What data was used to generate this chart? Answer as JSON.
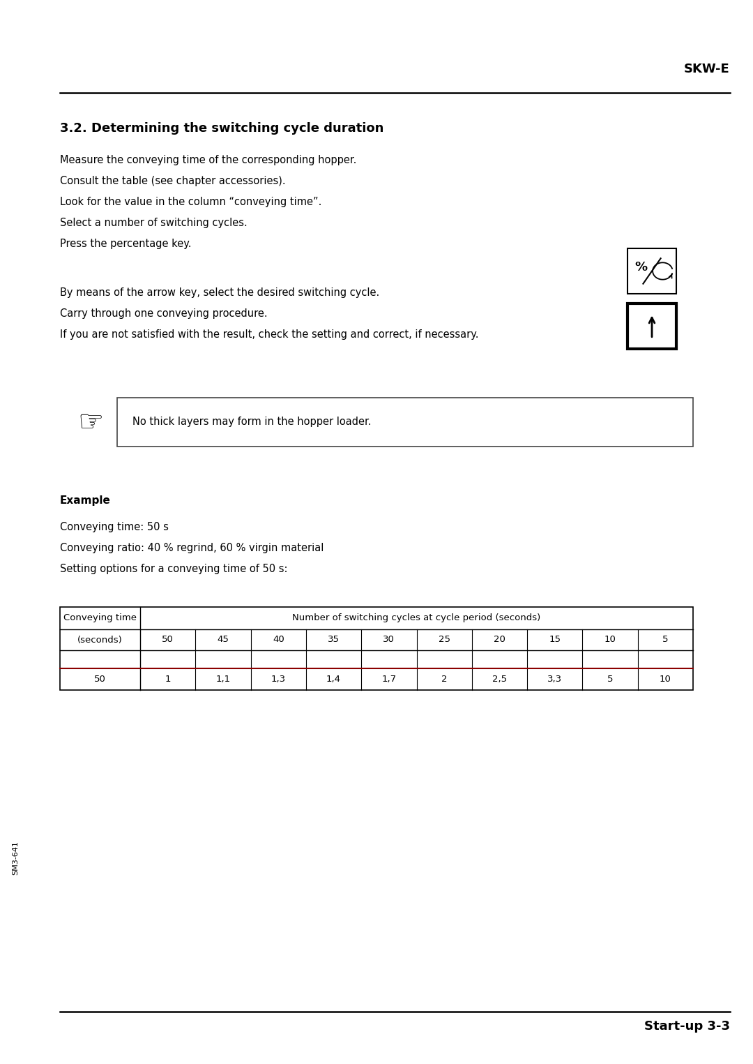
{
  "page_bg": "#ffffff",
  "header_text": "SKW-E",
  "footer_text": "Start-up 3-3",
  "side_text": "SM3-641",
  "section_title": "3.2. Determining the switching cycle duration",
  "body_lines_before_gap": [
    "Measure the conveying time of the corresponding hopper.",
    "Consult the table (see chapter accessories).",
    "Look for the value in the column “conveying time”.",
    "Select a number of switching cycles.",
    "Press the percentage key."
  ],
  "body_lines_after_gap": [
    "By means of the arrow key, select the desired switching cycle.",
    "Carry through one conveying procedure.",
    "If you are not satisfied with the result, check the setting and correct, if necessary."
  ],
  "note_text": "No thick layers may form in the hopper loader.",
  "example_label": "Example",
  "example_lines": [
    "Conveying time: 50 s",
    "Conveying ratio: 40 % regrind, 60 % virgin material",
    "Setting options for a conveying time of 50 s:"
  ],
  "table_header_col1": "Conveying time",
  "table_header_col2": "Number of switching cycles at cycle period (seconds)",
  "table_row1": [
    "(seconds)",
    "50",
    "45",
    "40",
    "35",
    "30",
    "25",
    "20",
    "15",
    "10",
    "5"
  ],
  "table_row3": [
    "50",
    "1",
    "1,1",
    "1,3",
    "1,4",
    "1,7",
    "2",
    "2,5",
    "3,3",
    "5",
    "10"
  ],
  "text_color": "#000000",
  "table_red_line_color": "#8b0000"
}
